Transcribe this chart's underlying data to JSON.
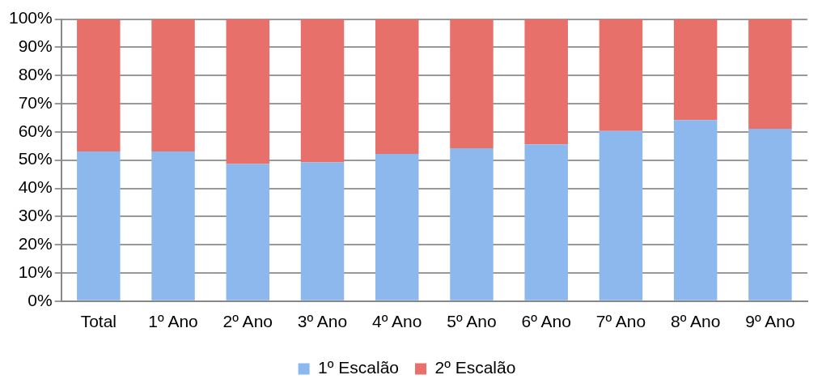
{
  "chart_data": {
    "type": "bar",
    "stacked": true,
    "categories": [
      "Total",
      "1º Ano",
      "2º Ano",
      "3º Ano",
      "4º Ano",
      "5º Ano",
      "6º Ano",
      "7º Ano",
      "8º Ano",
      "9º Ano"
    ],
    "series": [
      {
        "name": "1º Escalão",
        "color": "#8db8ee",
        "values": [
          53.1,
          53.1,
          48.6,
          49.2,
          52.2,
          54.2,
          55.6,
          60.3,
          64.2,
          61.1
        ]
      },
      {
        "name": "2º Escalão",
        "color": "#e8706a",
        "values": [
          46.9,
          46.9,
          51.4,
          50.8,
          47.8,
          45.8,
          44.4,
          39.7,
          35.8,
          38.9
        ]
      }
    ],
    "ylim": [
      0,
      100
    ],
    "yticks": [
      {
        "value": 0,
        "label": "0%"
      },
      {
        "value": 10,
        "label": "10%"
      },
      {
        "value": 20,
        "label": "20%"
      },
      {
        "value": 30,
        "label": "30%"
      },
      {
        "value": 40,
        "label": "40%"
      },
      {
        "value": 50,
        "label": "50%"
      },
      {
        "value": 60,
        "label": "60%"
      },
      {
        "value": 70,
        "label": "70%"
      },
      {
        "value": 80,
        "label": "80%"
      },
      {
        "value": 90,
        "label": "90%"
      },
      {
        "value": 100,
        "label": "100%"
      }
    ],
    "grid": "y",
    "legend": "bottom"
  }
}
